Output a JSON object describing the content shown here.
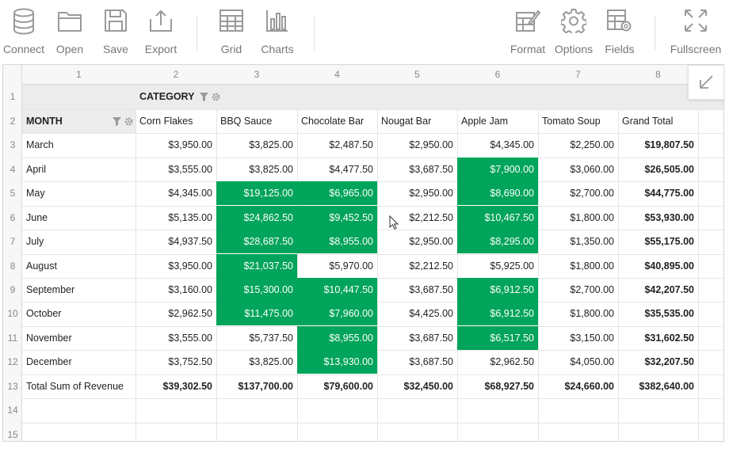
{
  "toolbar": {
    "connect": "Connect",
    "open": "Open",
    "save": "Save",
    "export": "Export",
    "grid": "Grid",
    "charts": "Charts",
    "format": "Format",
    "options": "Options",
    "fields": "Fields",
    "fullscreen": "Fullscreen"
  },
  "columns": [
    "1",
    "2",
    "3",
    "4",
    "5",
    "6",
    "7",
    "8"
  ],
  "row_numbers": [
    "1",
    "2",
    "3",
    "4",
    "5",
    "6",
    "7",
    "8",
    "9",
    "10",
    "11",
    "12",
    "13",
    "14",
    "15"
  ],
  "pivot": {
    "category_label": "CATEGORY",
    "month_label": "MONTH",
    "headers": [
      "Corn Flakes",
      "BBQ Sauce",
      "Chocolate Bar",
      "Nougat Bar",
      "Apple Jam",
      "Tomato Soup",
      "Grand Total"
    ],
    "rows": [
      {
        "label": "March",
        "values": [
          "$3,950.00",
          "$3,825.00",
          "$2,487.50",
          "$2,950.00",
          "$4,345.00",
          "$2,250.00",
          "$19,807.50"
        ],
        "highlight": [
          false,
          false,
          false,
          false,
          false,
          false
        ]
      },
      {
        "label": "April",
        "values": [
          "$3,555.00",
          "$3,825.00",
          "$4,477.50",
          "$3,687.50",
          "$7,900.00",
          "$3,060.00",
          "$26,505.00"
        ],
        "highlight": [
          false,
          false,
          false,
          false,
          true,
          false
        ]
      },
      {
        "label": "May",
        "values": [
          "$4,345.00",
          "$19,125.00",
          "$6,965.00",
          "$2,950.00",
          "$8,690.00",
          "$2,700.00",
          "$44,775.00"
        ],
        "highlight": [
          false,
          true,
          true,
          false,
          true,
          false
        ]
      },
      {
        "label": "June",
        "values": [
          "$5,135.00",
          "$24,862.50",
          "$9,452.50",
          "$2,212.50",
          "$10,467.50",
          "$1,800.00",
          "$53,930.00"
        ],
        "highlight": [
          false,
          true,
          true,
          false,
          true,
          false
        ]
      },
      {
        "label": "July",
        "values": [
          "$4,937.50",
          "$28,687.50",
          "$8,955.00",
          "$2,950.00",
          "$8,295.00",
          "$1,350.00",
          "$55,175.00"
        ],
        "highlight": [
          false,
          true,
          true,
          false,
          true,
          false
        ]
      },
      {
        "label": "August",
        "values": [
          "$3,950.00",
          "$21,037.50",
          "$5,970.00",
          "$2,212.50",
          "$5,925.00",
          "$1,800.00",
          "$40,895.00"
        ],
        "highlight": [
          false,
          true,
          false,
          false,
          false,
          false
        ]
      },
      {
        "label": "September",
        "values": [
          "$3,160.00",
          "$15,300.00",
          "$10,447.50",
          "$3,687.50",
          "$6,912.50",
          "$2,700.00",
          "$42,207.50"
        ],
        "highlight": [
          false,
          true,
          true,
          false,
          true,
          false
        ]
      },
      {
        "label": "October",
        "values": [
          "$2,962.50",
          "$11,475.00",
          "$7,960.00",
          "$4,425.00",
          "$6,912.50",
          "$1,800.00",
          "$35,535.00"
        ],
        "highlight": [
          false,
          true,
          true,
          false,
          true,
          false
        ]
      },
      {
        "label": "November",
        "values": [
          "$3,555.00",
          "$5,737.50",
          "$8,955.00",
          "$3,687.50",
          "$6,517.50",
          "$3,150.00",
          "$31,602.50"
        ],
        "highlight": [
          false,
          false,
          true,
          false,
          true,
          false
        ]
      },
      {
        "label": "December",
        "values": [
          "$3,752.50",
          "$3,825.00",
          "$13,930.00",
          "$3,687.50",
          "$2,962.50",
          "$4,050.00",
          "$32,207.50"
        ],
        "highlight": [
          false,
          false,
          true,
          false,
          false,
          false
        ]
      }
    ],
    "total": {
      "label": "Total Sum of Revenue",
      "values": [
        "$39,302.50",
        "$137,700.00",
        "$79,600.00",
        "$32,450.00",
        "$68,927.50",
        "$24,660.00",
        "$382,640.00"
      ]
    }
  },
  "colors": {
    "highlight": "#00a45a",
    "icon": "#9a9a9a"
  }
}
